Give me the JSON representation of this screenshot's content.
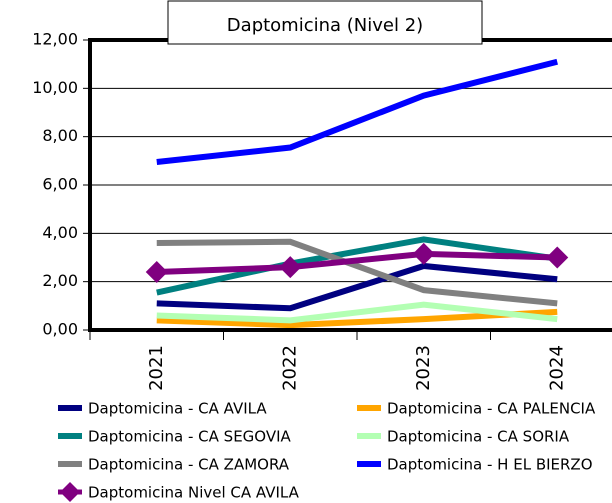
{
  "chart_data": {
    "type": "line",
    "title": "Daptomicina (Nivel 2)",
    "categories": [
      "2021",
      "2022",
      "2023",
      "2024"
    ],
    "series": [
      {
        "name": "Daptomicina - CA AVILA",
        "color": "#000080",
        "values": [
          1.1,
          0.9,
          2.65,
          2.1
        ]
      },
      {
        "name": "Daptomicina - CA PALENCIA",
        "color": "#ffa500",
        "values": [
          0.4,
          0.2,
          0.45,
          0.75
        ]
      },
      {
        "name": "Daptomicina - CA SEGOVIA",
        "color": "#008080",
        "values": [
          1.55,
          2.75,
          3.75,
          2.95
        ]
      },
      {
        "name": "Daptomicina - CA SORIA",
        "color": "#b3ffb3",
        "values": [
          0.6,
          0.4,
          1.05,
          0.45
        ]
      },
      {
        "name": "Daptomicina - CA ZAMORA",
        "color": "#808080",
        "values": [
          3.6,
          3.65,
          1.65,
          1.1
        ]
      },
      {
        "name": "Daptomicina - H EL BIERZO",
        "color": "#0000ff",
        "values": [
          6.95,
          7.55,
          9.7,
          11.1
        ]
      },
      {
        "name": "Daptomicina Nivel CA AVILA",
        "color": "#800080",
        "marker": "diamond",
        "values": [
          2.4,
          2.6,
          3.15,
          3.0
        ]
      }
    ],
    "ylim": [
      0,
      12
    ],
    "yticks": [
      {
        "value": 0,
        "label": "0,00"
      },
      {
        "value": 2,
        "label": "2,00"
      },
      {
        "value": 4,
        "label": "4,00"
      },
      {
        "value": 6,
        "label": "6,00"
      },
      {
        "value": 8,
        "label": "8,00"
      },
      {
        "value": 10,
        "label": "10,00"
      },
      {
        "value": 12,
        "label": "12,00"
      }
    ],
    "grid": true
  }
}
